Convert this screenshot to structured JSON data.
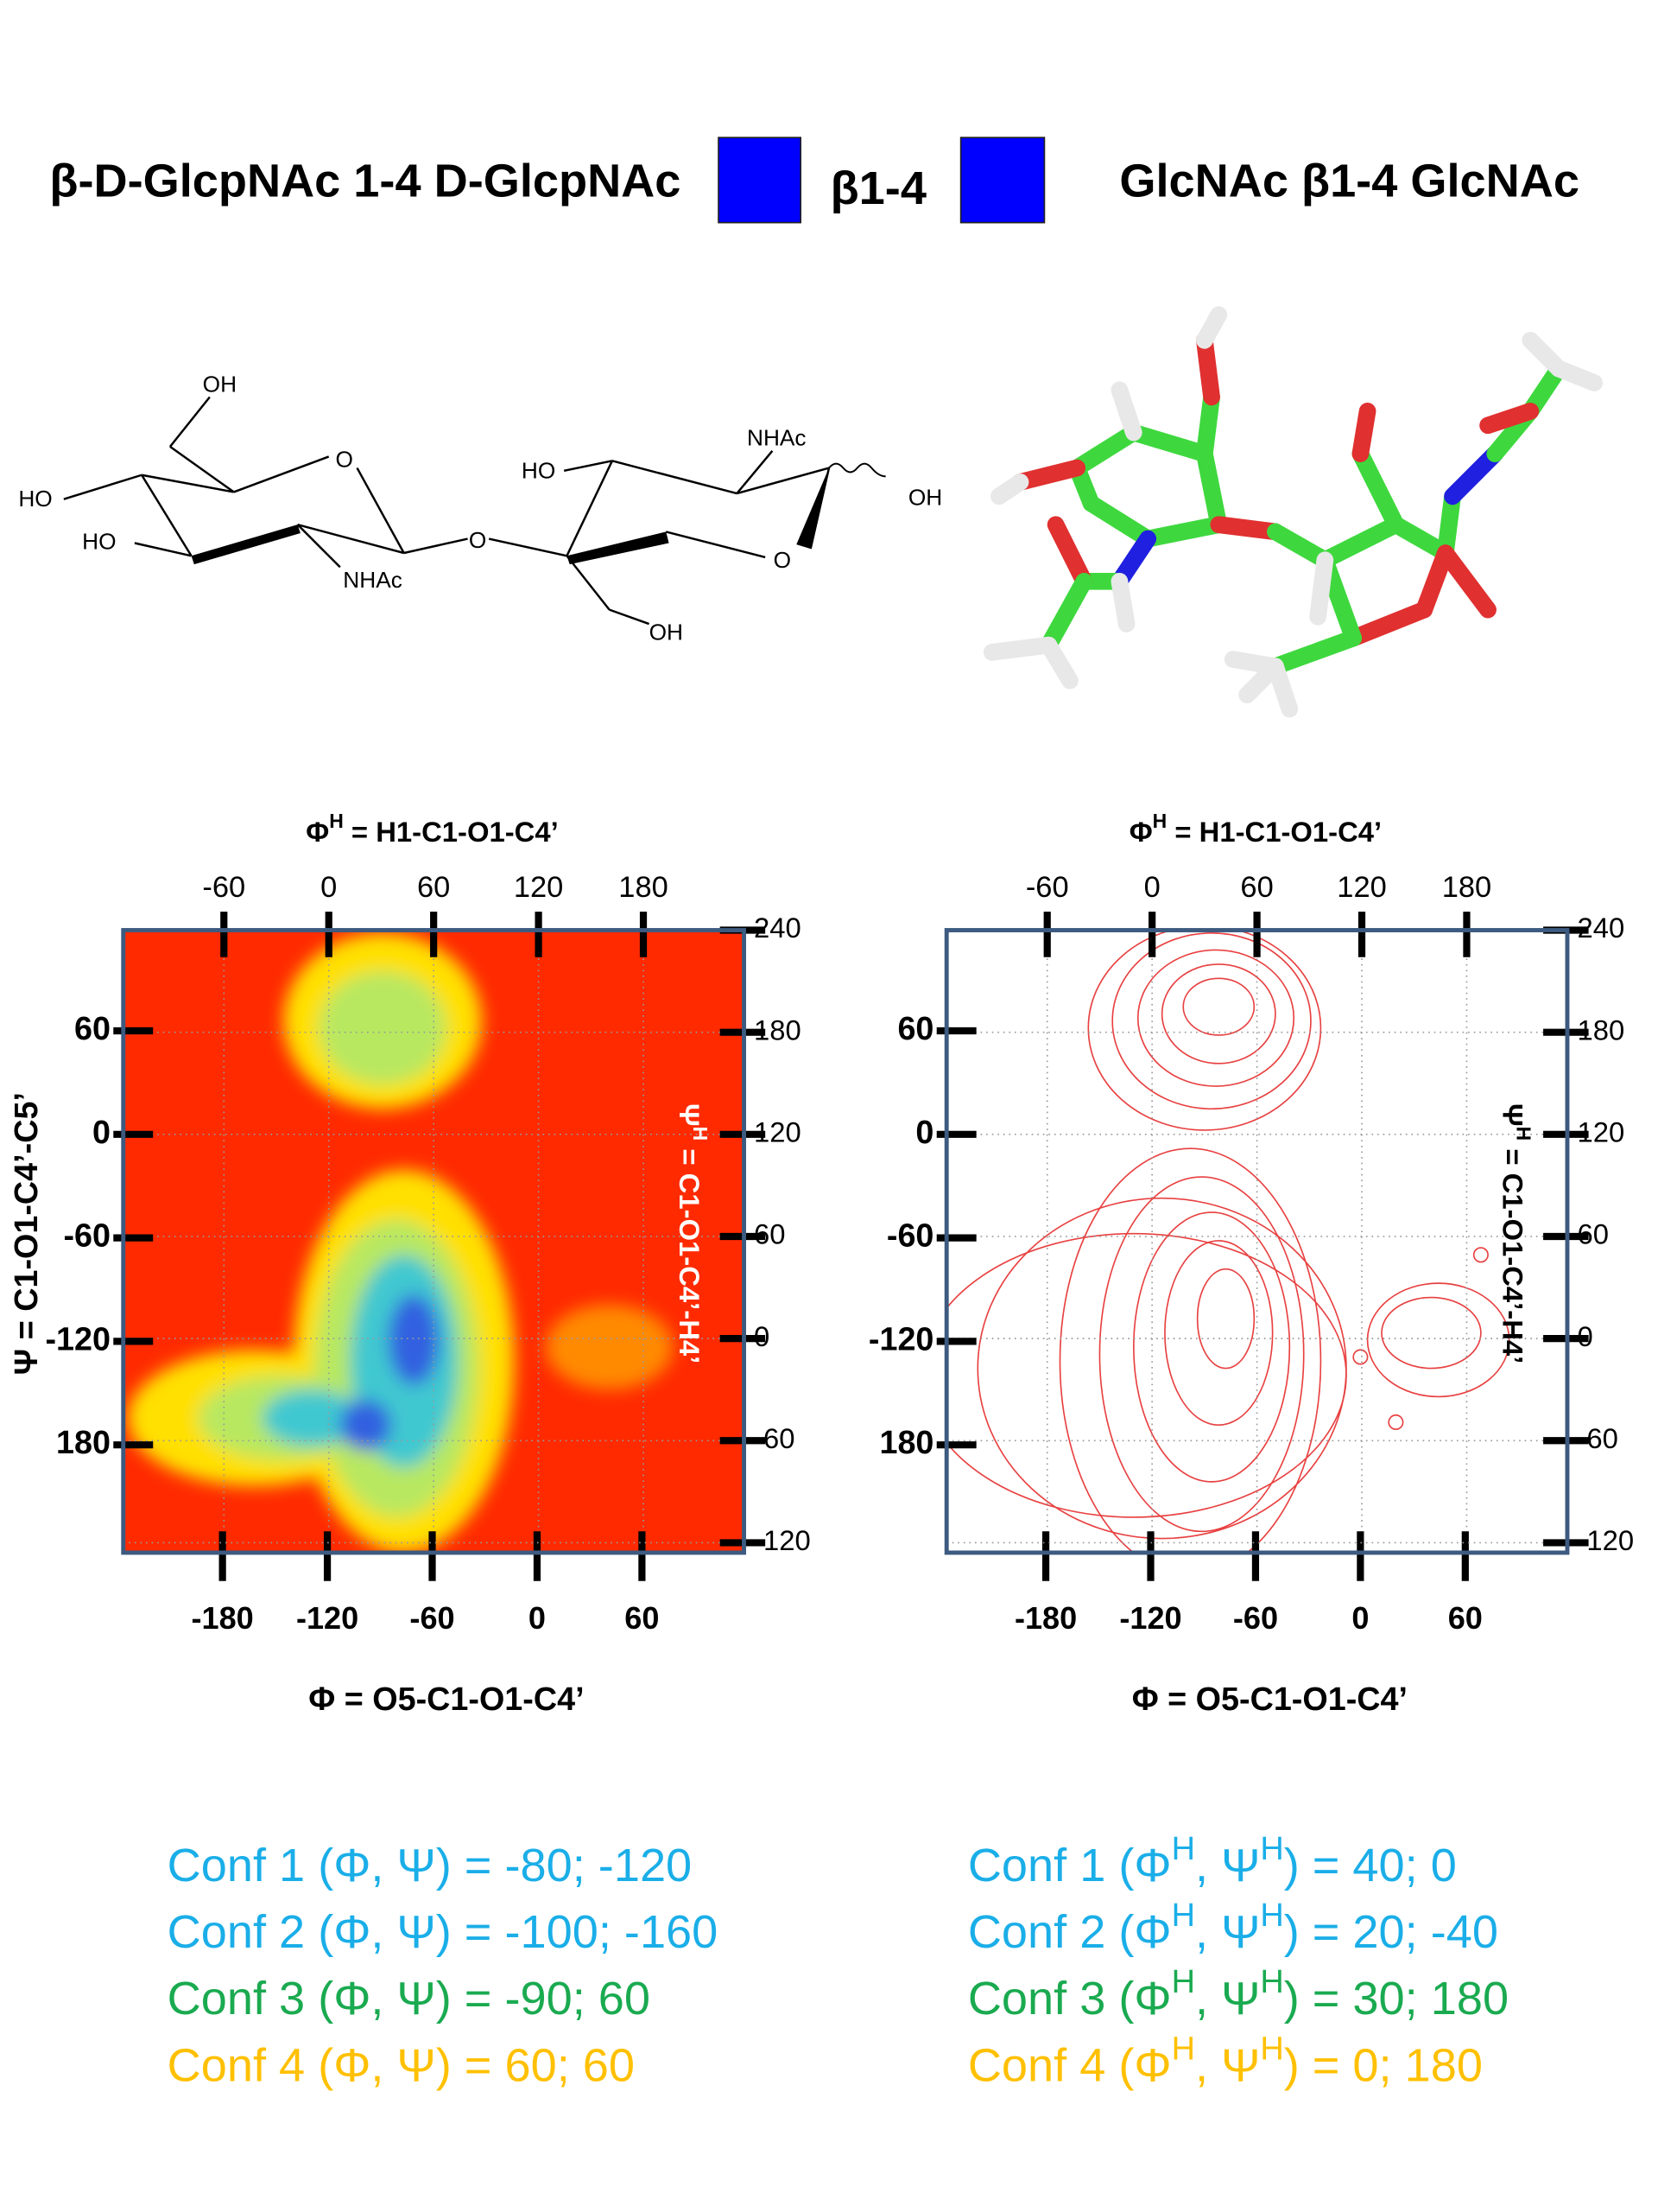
{
  "header": {
    "left": "β-D-GlcpNAc 1-4 D-GlcpNAc",
    "link": "β1-4",
    "right": "GlcNAc β1-4 GlcNAc"
  },
  "structure": {
    "labels": [
      "OH",
      "HO",
      "HO",
      "NHAc",
      "O",
      "O",
      "HO",
      "NHAc",
      "OH",
      "O",
      "OH"
    ]
  },
  "panels": [
    {
      "top_title": [
        {
          "text": "Φ"
        },
        {
          "text": "H",
          "sup": true
        },
        {
          "text": " = H1-C1-O1-C4’"
        }
      ],
      "top_ticks": [
        -60,
        0,
        60,
        120,
        180
      ],
      "right_ticks": [
        240,
        180,
        120,
        60,
        0,
        -60,
        -120
      ],
      "left_ticks": [
        60,
        0,
        -60,
        -120,
        180
      ],
      "bottom_ticks": [
        -180,
        -120,
        -60,
        0,
        60
      ],
      "bottom_title": "Φ = O5-C1-O1-C4’",
      "left_title": "Ψ = C1-O1-C4’-C5’",
      "right_title": [
        {
          "text": "Ψ"
        },
        {
          "text": "H",
          "sup": true
        },
        {
          "text": " = C1-O1-C4’-H4’"
        }
      ],
      "right_title_color": "#ffffff"
    },
    {
      "top_title": [
        {
          "text": "Φ"
        },
        {
          "text": "H",
          "sup": true
        },
        {
          "text": " = H1-C1-O1-C4’"
        }
      ],
      "top_ticks": [
        -60,
        0,
        60,
        120,
        180
      ],
      "right_ticks": [
        240,
        180,
        120,
        60,
        0,
        -60,
        -120
      ],
      "left_ticks": [
        60,
        0,
        -60,
        -120,
        180
      ],
      "bottom_ticks": [
        -180,
        -120,
        -60,
        0,
        60
      ],
      "bottom_title": "Φ = O5-C1-O1-C4’",
      "right_title": [
        {
          "text": "Ψ"
        },
        {
          "text": "H",
          "sup": true
        },
        {
          "text": " = C1-O1-C4’-H4’"
        }
      ],
      "right_title_color": "#000000"
    }
  ],
  "confs": {
    "left": [
      {
        "color": "#1aaee8",
        "segments": [
          {
            "text": "Conf 1 (Φ, Ψ) = -80; -120"
          }
        ]
      },
      {
        "color": "#1aaee8",
        "segments": [
          {
            "text": "Conf 2 (Φ, Ψ) =  -100; -160"
          }
        ]
      },
      {
        "color": "#1aaa50",
        "segments": [
          {
            "text": "Conf 3 (Φ, Ψ) =  -90; 60"
          }
        ]
      },
      {
        "color": "#ffc000",
        "segments": [
          {
            "text": "Conf 4 (Φ, Ψ) =  60; 60"
          }
        ]
      }
    ],
    "right": [
      {
        "color": "#1aaee8",
        "segments": [
          {
            "text": "Conf 1 (Φ"
          },
          {
            "text": "H",
            "sup": true
          },
          {
            "text": ", Ψ"
          },
          {
            "text": "H",
            "sup": true
          },
          {
            "text": ") =  40; 0"
          }
        ]
      },
      {
        "color": "#1aaee8",
        "segments": [
          {
            "text": "Conf 2 (Φ"
          },
          {
            "text": "H",
            "sup": true
          },
          {
            "text": ", Ψ"
          },
          {
            "text": "H",
            "sup": true
          },
          {
            "text": ") =  20; -40"
          }
        ]
      },
      {
        "color": "#1aaa50",
        "segments": [
          {
            "text": "Conf 3 (Φ"
          },
          {
            "text": "H",
            "sup": true
          },
          {
            "text": ", Ψ"
          },
          {
            "text": "H",
            "sup": true
          },
          {
            "text": ") =  30; 180"
          }
        ]
      },
      {
        "color": "#ffc000",
        "segments": [
          {
            "text": "Conf 4 (Φ"
          },
          {
            "text": "H",
            "sup": true
          },
          {
            "text": ", Ψ"
          },
          {
            "text": "H",
            "sup": true
          },
          {
            "text": ") =    0; 180"
          }
        ]
      }
    ]
  }
}
